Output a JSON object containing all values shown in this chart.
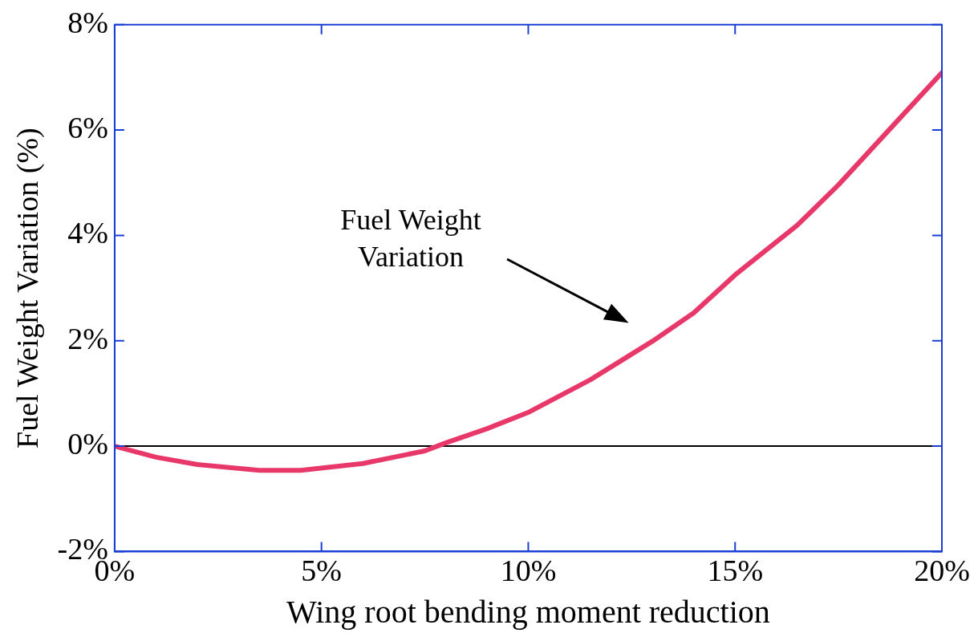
{
  "chart_data": {
    "type": "line",
    "xlabel": "Wing root bending moment reduction",
    "ylabel": "Fuel Weight Variation (%)",
    "x": [
      0,
      1,
      2,
      3.5,
      4.5,
      6,
      7.5,
      8,
      9,
      10,
      11.5,
      13,
      14,
      15,
      16.5,
      17.5,
      19,
      20
    ],
    "series": [
      {
        "color": "#e8386a",
        "values": [
          0,
          -0.21,
          -0.35,
          -0.46,
          -0.46,
          -0.33,
          -0.09,
          0.06,
          0.33,
          0.64,
          1.26,
          1.99,
          2.53,
          3.25,
          4.19,
          4.96,
          6.24,
          7.09
        ]
      }
    ],
    "xlim": [
      0,
      20
    ],
    "xticks": [
      {
        "value": 0,
        "label": "0%"
      },
      {
        "value": 5,
        "label": "5%"
      },
      {
        "value": 10,
        "label": "10%"
      },
      {
        "value": 15,
        "label": "15%"
      },
      {
        "value": 20,
        "label": "20%"
      }
    ],
    "ylim": [
      -2,
      8
    ],
    "yticks": [
      {
        "value": -2,
        "label": "-2%"
      },
      {
        "value": 0,
        "label": "0%"
      },
      {
        "value": 2,
        "label": "2%"
      },
      {
        "value": 4,
        "label": "4%"
      },
      {
        "value": 6,
        "label": "6%"
      },
      {
        "value": 8,
        "label": "8%"
      }
    ],
    "ref_lines": [
      {
        "axis": "y",
        "value": 0,
        "color": "#000000"
      }
    ],
    "annotations": [
      "Fuel Weight\nVariation"
    ],
    "grid": false,
    "legend": false,
    "marker": "none",
    "line_style": "solid"
  }
}
